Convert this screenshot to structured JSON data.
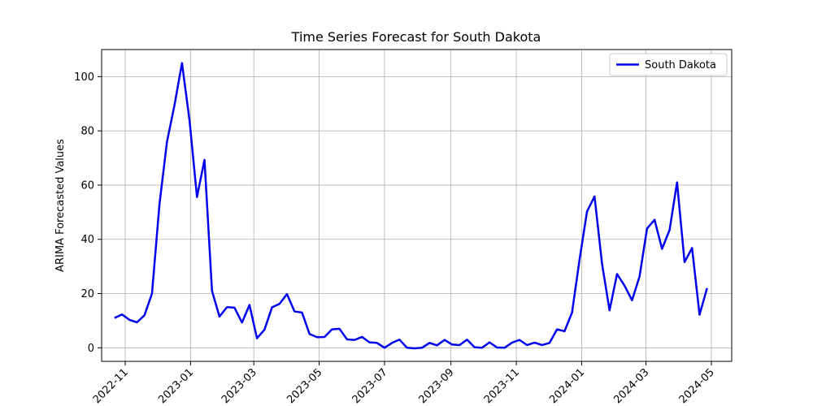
{
  "chart_data": {
    "type": "line",
    "title": "Time Series Forecast for South Dakota",
    "xlabel": "",
    "ylabel": "ARIMA Forecasted Values",
    "ylim": [
      -5,
      110
    ],
    "xlim": [
      "2022-10-10",
      "2024-05-20"
    ],
    "y_ticks": [
      0,
      20,
      40,
      60,
      80,
      100
    ],
    "x_ticks": [
      "2022-11",
      "2023-01",
      "2023-03",
      "2023-05",
      "2023-07",
      "2023-09",
      "2023-11",
      "2024-01",
      "2024-03",
      "2024-05"
    ],
    "grid": true,
    "legend_position": "top-right",
    "series": [
      {
        "name": "South Dakota",
        "color": "#0000ee",
        "x": [
          "2022-10-22",
          "2022-10-29",
          "2022-11-05",
          "2022-11-12",
          "2022-11-19",
          "2022-11-26",
          "2022-12-03",
          "2022-12-10",
          "2022-12-17",
          "2022-12-24",
          "2022-12-31",
          "2023-01-07",
          "2023-01-14",
          "2023-01-21",
          "2023-01-28",
          "2023-02-04",
          "2023-02-11",
          "2023-02-18",
          "2023-02-25",
          "2023-03-04",
          "2023-03-11",
          "2023-03-18",
          "2023-03-25",
          "2023-04-01",
          "2023-04-08",
          "2023-04-15",
          "2023-04-22",
          "2023-04-29",
          "2023-05-06",
          "2023-05-13",
          "2023-05-20",
          "2023-05-27",
          "2023-06-03",
          "2023-06-10",
          "2023-06-17",
          "2023-06-24",
          "2023-07-01",
          "2023-07-08",
          "2023-07-15",
          "2023-07-22",
          "2023-07-29",
          "2023-08-05",
          "2023-08-12",
          "2023-08-19",
          "2023-08-26",
          "2023-09-02",
          "2023-09-09",
          "2023-09-16",
          "2023-09-23",
          "2023-09-30",
          "2023-10-07",
          "2023-10-14",
          "2023-10-21",
          "2023-10-28",
          "2023-11-04",
          "2023-11-11",
          "2023-11-18",
          "2023-11-25",
          "2023-12-02",
          "2023-12-09",
          "2023-12-16",
          "2023-12-23",
          "2023-12-30",
          "2024-01-06",
          "2024-01-13",
          "2024-01-20",
          "2024-01-27",
          "2024-02-03",
          "2024-02-10",
          "2024-02-17",
          "2024-02-24",
          "2024-03-02",
          "2024-03-09",
          "2024-03-16",
          "2024-03-23",
          "2024-03-30",
          "2024-04-06",
          "2024-04-13",
          "2024-04-20",
          "2024-04-27"
        ],
        "values": [
          11,
          12.3,
          10.3,
          9.4,
          12,
          20,
          53,
          76,
          89.5,
          105,
          84,
          55.6,
          69.3,
          21,
          11.5,
          15,
          14.8,
          9.3,
          15.8,
          3.5,
          6.7,
          14.9,
          16.2,
          19.8,
          13.4,
          13,
          5.1,
          3.9,
          4,
          6.8,
          7,
          3.1,
          2.9,
          4,
          2,
          1.8,
          0,
          1.8,
          3,
          0,
          -0.2,
          0,
          1.8,
          0.9,
          2.9,
          1.2,
          1,
          3,
          0.2,
          0,
          2,
          0.1,
          0,
          1.9,
          2.9,
          1,
          1.9,
          1,
          1.8,
          6.8,
          6.1,
          13,
          32.5,
          50.3,
          55.8,
          31,
          13.8,
          27.2,
          22.9,
          17.5,
          26.3,
          44,
          47.2,
          36.5,
          43.4,
          61,
          31.6,
          36.8,
          12.2,
          22
        ]
      }
    ]
  }
}
